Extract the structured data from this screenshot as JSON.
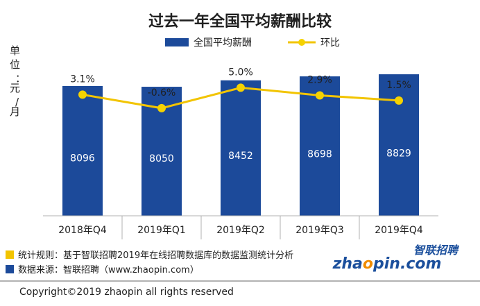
{
  "chart_data": {
    "type": "bar",
    "title": "过去一年全国平均薪酬比较",
    "ylabel": "单位：元/月",
    "categories": [
      "2018年Q4",
      "2019年Q1",
      "2019年Q2",
      "2019年Q3",
      "2019年Q4"
    ],
    "ylim": [
      0,
      10000
    ],
    "series": [
      {
        "name": "全国平均薪酬",
        "type": "bar",
        "values": [
          8096,
          8050,
          8452,
          8698,
          8829
        ],
        "labels": [
          "8096",
          "8050",
          "8452",
          "8698",
          "8829"
        ]
      },
      {
        "name": "环比",
        "type": "line",
        "values": [
          3.1,
          -0.6,
          5.0,
          2.9,
          1.5
        ],
        "labels": [
          "3.1%",
          "-0.6%",
          "5.0%",
          "2.9%",
          "1.5%"
        ]
      }
    ],
    "line_range": [
      -30,
      10
    ],
    "grid": false,
    "legend": "top-center"
  },
  "colors": {
    "bar": "#1c4a9a",
    "line": "#f2c400",
    "marker": "#f5d200",
    "note_marker_line": "#f2c400",
    "note_marker_bar": "#1c4a9a",
    "logo": "#1b4f9c",
    "logo_accent": "#f08c00"
  },
  "notes": {
    "method": "统计规则：基于智联招聘2019年在线招聘数据库的数据监测统计分析",
    "source": "数据来源：智联招聘（www.zhaopin.com）"
  },
  "logo": {
    "cn": "智联招聘",
    "en": "zhaopin.com"
  },
  "copyright": "Copyright©2019 zhaopin all rights reserved"
}
